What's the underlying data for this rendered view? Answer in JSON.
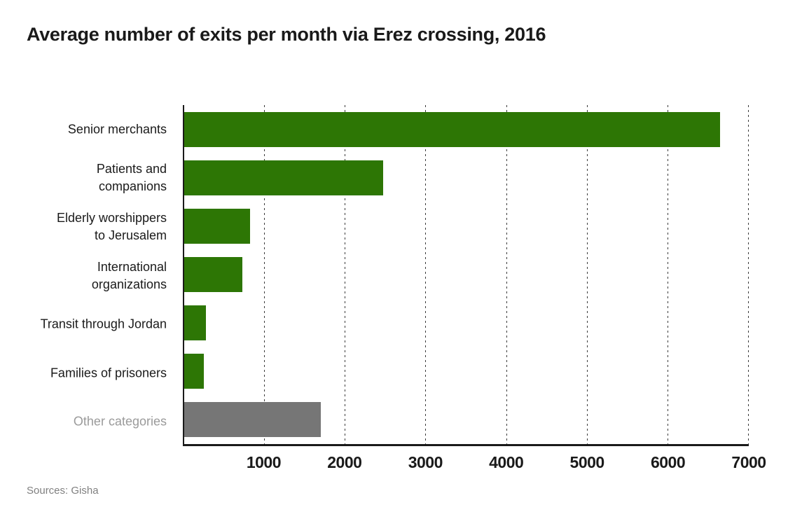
{
  "source": "Sources: Gisha",
  "colors": {
    "bar_green": "#2d7605",
    "bar_gray": "#767676",
    "text": "#1a1a1a",
    "muted_label": "#9a9a9a",
    "source_text": "#808080",
    "gridline": "#3c3c3c",
    "axis": "#1a1a1a",
    "background": "#ffffff"
  },
  "chart_data": {
    "type": "bar",
    "orientation": "horizontal",
    "title": "Average number of exits per month via Erez crossing, 2016",
    "categories": [
      "Senior merchants",
      "Patients and\ncompanions",
      "Elderly worshippers\nto Jerusalem",
      "International\norganizations",
      "Transit through Jordan",
      "Families of prisoners",
      "Other categories"
    ],
    "values": [
      6640,
      2470,
      815,
      720,
      270,
      245,
      1690
    ],
    "bar_colors": [
      "green",
      "green",
      "green",
      "green",
      "green",
      "green",
      "gray"
    ],
    "muted_label_indices": [
      6
    ],
    "xlabel": "",
    "ylabel": "",
    "xlim": [
      0,
      7000
    ],
    "xticks": [
      1000,
      2000,
      3000,
      4000,
      5000,
      6000,
      7000
    ],
    "grid": "vertical-dashed",
    "legend": "none"
  }
}
